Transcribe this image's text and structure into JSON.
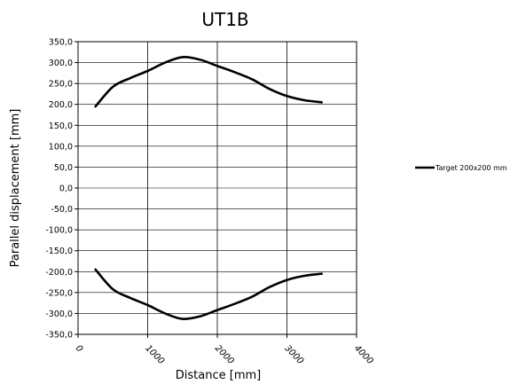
{
  "chart_data": {
    "type": "line",
    "title": "UT1B",
    "xlabel": "Distance  [mm]",
    "ylabel": "Parallel displacement [mm]",
    "xlim": [
      0,
      4000
    ],
    "ylim": [
      -350,
      350
    ],
    "x_ticks": [
      "0",
      "1000",
      "2000",
      "3000",
      "4000"
    ],
    "y_ticks": [
      "350,0",
      "300,0",
      "250,0",
      "200,0",
      "150,0",
      "100,0",
      "50,0",
      "0,0",
      "-50,0",
      "-100,0",
      "-150,0",
      "-200,0",
      "-250,0",
      "-300,0",
      "-350,0"
    ],
    "grid": {
      "horizontal": true,
      "vertical": true
    },
    "legend_position": "right",
    "series": [
      {
        "name": "Target 200x200 mm",
        "color": "#000000",
        "x": [
          250,
          500,
          750,
          1000,
          1250,
          1500,
          1750,
          2000,
          2250,
          2500,
          2750,
          3000,
          3250,
          3500
        ],
        "y": [
          195,
          242,
          263,
          280,
          300,
          313,
          307,
          292,
          277,
          260,
          237,
          220,
          210,
          205
        ]
      },
      {
        "name": "Target 200x200 mm",
        "color": "#000000",
        "x": [
          250,
          500,
          750,
          1000,
          1250,
          1500,
          1750,
          2000,
          2250,
          2500,
          2750,
          3000,
          3250,
          3500
        ],
        "y": [
          -195,
          -242,
          -263,
          -280,
          -300,
          -313,
          -307,
          -292,
          -277,
          -260,
          -237,
          -220,
          -210,
          -205
        ]
      }
    ]
  }
}
